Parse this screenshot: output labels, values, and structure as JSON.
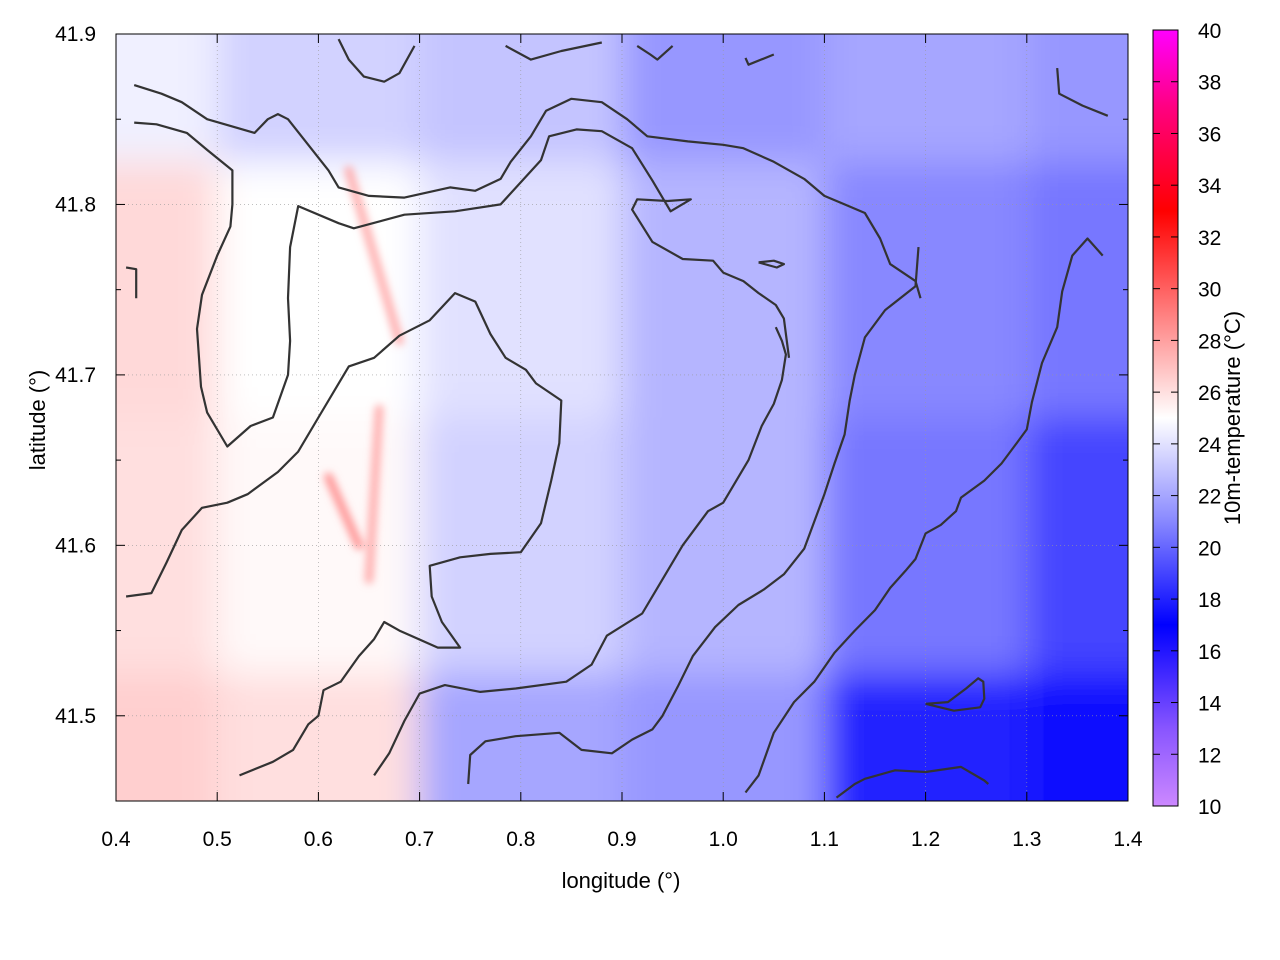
{
  "chart_data": {
    "type": "heatmap",
    "title": "",
    "xlabel": "longitude (°)",
    "ylabel": "latitude (°)",
    "colorbar_label": "10m-temperature (°C)",
    "xlim": [
      0.4,
      1.4
    ],
    "ylim": [
      41.45,
      41.9
    ],
    "x_ticks": [
      "0.4",
      "0.5",
      "0.6",
      "0.7",
      "0.8",
      "0.9",
      "1.0",
      "1.1",
      "1.2",
      "1.3",
      "1.4"
    ],
    "y_ticks": [
      "41.5",
      "41.6",
      "41.7",
      "41.8",
      "41.9"
    ],
    "colorbar_range": [
      10,
      40
    ],
    "colorbar_ticks": [
      "10",
      "12",
      "14",
      "16",
      "18",
      "20",
      "22",
      "24",
      "26",
      "28",
      "30",
      "32",
      "34",
      "36",
      "38",
      "40"
    ],
    "colorbar_colors": [
      {
        "value": 10,
        "color": "#cc88ff"
      },
      {
        "value": 13,
        "color": "#8855ff"
      },
      {
        "value": 17,
        "color": "#0000ff"
      },
      {
        "value": 21,
        "color": "#8888ff"
      },
      {
        "value": 25,
        "color": "#ffffff"
      },
      {
        "value": 29,
        "color": "#ff8080"
      },
      {
        "value": 33,
        "color": "#ff0000"
      },
      {
        "value": 37,
        "color": "#ff0080"
      },
      {
        "value": 40,
        "color": "#ff00ff"
      }
    ],
    "grid": true,
    "contour_color": "#333333",
    "temperature_field_samples": [
      {
        "lon": 0.4,
        "lat": 41.45,
        "t": 26.5
      },
      {
        "lon": 0.4,
        "lat": 41.6,
        "t": 26.0
      },
      {
        "lon": 0.4,
        "lat": 41.75,
        "t": 26.2
      },
      {
        "lon": 0.4,
        "lat": 41.9,
        "t": 24.5
      },
      {
        "lon": 0.6,
        "lat": 41.45,
        "t": 26.0
      },
      {
        "lon": 0.6,
        "lat": 41.6,
        "t": 25.2
      },
      {
        "lon": 0.6,
        "lat": 41.75,
        "t": 25.0
      },
      {
        "lon": 0.6,
        "lat": 41.9,
        "t": 23.5
      },
      {
        "lon": 0.8,
        "lat": 41.45,
        "t": 22.0
      },
      {
        "lon": 0.8,
        "lat": 41.6,
        "t": 23.5
      },
      {
        "lon": 0.8,
        "lat": 41.75,
        "t": 24.0
      },
      {
        "lon": 0.8,
        "lat": 41.9,
        "t": 23.0
      },
      {
        "lon": 1.0,
        "lat": 41.45,
        "t": 21.5
      },
      {
        "lon": 1.0,
        "lat": 41.6,
        "t": 22.5
      },
      {
        "lon": 1.0,
        "lat": 41.75,
        "t": 22.5
      },
      {
        "lon": 1.0,
        "lat": 41.9,
        "t": 21.5
      },
      {
        "lon": 1.2,
        "lat": 41.45,
        "t": 18.0
      },
      {
        "lon": 1.2,
        "lat": 41.6,
        "t": 20.5
      },
      {
        "lon": 1.2,
        "lat": 41.75,
        "t": 21.0
      },
      {
        "lon": 1.2,
        "lat": 41.9,
        "t": 22.0
      },
      {
        "lon": 1.4,
        "lat": 41.45,
        "t": 17.5
      },
      {
        "lon": 1.4,
        "lat": 41.6,
        "t": 19.0
      },
      {
        "lon": 1.4,
        "lat": 41.75,
        "t": 20.5
      },
      {
        "lon": 1.4,
        "lat": 41.9,
        "t": 21.5
      }
    ],
    "contours": [
      [
        [
          0.418,
          41.87
        ],
        [
          0.445,
          41.865
        ],
        [
          0.465,
          41.86
        ],
        [
          0.49,
          41.85
        ],
        [
          0.537,
          41.842
        ],
        [
          0.55,
          41.85
        ],
        [
          0.56,
          41.853
        ],
        [
          0.57,
          41.85
        ],
        [
          0.61,
          41.82
        ],
        [
          0.62,
          41.81
        ],
        [
          0.65,
          41.805
        ],
        [
          0.685,
          41.804
        ],
        [
          0.73,
          41.81
        ],
        [
          0.755,
          41.808
        ],
        [
          0.78,
          41.815
        ],
        [
          0.79,
          41.825
        ],
        [
          0.81,
          41.84
        ],
        [
          0.825,
          41.855
        ],
        [
          0.85,
          41.862
        ],
        [
          0.88,
          41.86
        ],
        [
          0.905,
          41.85
        ],
        [
          0.925,
          41.84
        ],
        [
          0.965,
          41.837
        ],
        [
          1.0,
          41.835
        ],
        [
          1.02,
          41.833
        ],
        [
          1.05,
          41.825
        ],
        [
          1.08,
          41.815
        ],
        [
          1.1,
          41.805
        ],
        [
          1.12,
          41.8
        ],
        [
          1.14,
          41.795
        ],
        [
          1.155,
          41.78
        ],
        [
          1.165,
          41.765
        ],
        [
          1.19,
          41.755
        ],
        [
          1.195,
          41.745
        ]
      ],
      [
        [
          0.418,
          41.848
        ],
        [
          0.44,
          41.847
        ],
        [
          0.47,
          41.842
        ],
        [
          0.49,
          41.832
        ],
        [
          0.515,
          41.82
        ],
        [
          0.515,
          41.8
        ],
        [
          0.513,
          41.787
        ],
        [
          0.5,
          41.77
        ],
        [
          0.485,
          41.747
        ],
        [
          0.48,
          41.727
        ],
        [
          0.482,
          41.71
        ],
        [
          0.484,
          41.693
        ],
        [
          0.49,
          41.678
        ],
        [
          0.51,
          41.658
        ],
        [
          0.533,
          41.67
        ],
        [
          0.555,
          41.675
        ],
        [
          0.57,
          41.7
        ],
        [
          0.572,
          41.72
        ],
        [
          0.57,
          41.745
        ],
        [
          0.572,
          41.775
        ],
        [
          0.58,
          41.799
        ],
        [
          0.62,
          41.789
        ],
        [
          0.635,
          41.786
        ],
        [
          0.685,
          41.794
        ],
        [
          0.735,
          41.796
        ],
        [
          0.78,
          41.8
        ],
        [
          0.82,
          41.826
        ],
        [
          0.828,
          41.84
        ],
        [
          0.855,
          41.844
        ],
        [
          0.88,
          41.843
        ],
        [
          0.91,
          41.833
        ],
        [
          0.93,
          41.814
        ],
        [
          0.948,
          41.796
        ],
        [
          0.968,
          41.803
        ],
        [
          0.945,
          41.802
        ],
        [
          0.915,
          41.803
        ],
        [
          0.91,
          41.797
        ],
        [
          0.93,
          41.778
        ],
        [
          0.96,
          41.768
        ],
        [
          0.99,
          41.767
        ],
        [
          1.0,
          41.76
        ],
        [
          1.02,
          41.755
        ],
        [
          1.035,
          41.748
        ],
        [
          1.052,
          41.741
        ],
        [
          1.06,
          41.733
        ],
        [
          1.065,
          41.71
        ]
      ],
      [
        [
          0.41,
          41.57
        ],
        [
          0.435,
          41.572
        ],
        [
          0.45,
          41.59
        ],
        [
          0.465,
          41.609
        ],
        [
          0.485,
          41.622
        ],
        [
          0.51,
          41.625
        ],
        [
          0.53,
          41.63
        ],
        [
          0.56,
          41.643
        ],
        [
          0.58,
          41.655
        ],
        [
          0.6,
          41.675
        ],
        [
          0.63,
          41.705
        ],
        [
          0.655,
          41.71
        ],
        [
          0.68,
          41.723
        ],
        [
          0.71,
          41.732
        ],
        [
          0.735,
          41.748
        ],
        [
          0.755,
          41.743
        ],
        [
          0.77,
          41.724
        ],
        [
          0.785,
          41.71
        ],
        [
          0.805,
          41.703
        ],
        [
          0.815,
          41.695
        ],
        [
          0.84,
          41.685
        ],
        [
          0.838,
          41.66
        ],
        [
          0.83,
          41.638
        ],
        [
          0.82,
          41.613
        ],
        [
          0.8,
          41.596
        ],
        [
          0.77,
          41.595
        ],
        [
          0.74,
          41.593
        ],
        [
          0.71,
          41.588
        ],
        [
          0.712,
          41.57
        ],
        [
          0.722,
          41.555
        ],
        [
          0.74,
          41.54
        ],
        [
          0.718,
          41.54
        ],
        [
          0.68,
          41.55
        ],
        [
          0.665,
          41.555
        ],
        [
          0.655,
          41.545
        ],
        [
          0.64,
          41.535
        ],
        [
          0.622,
          41.52
        ],
        [
          0.605,
          41.515
        ],
        [
          0.6,
          41.5
        ],
        [
          0.59,
          41.495
        ],
        [
          0.575,
          41.48
        ],
        [
          0.555,
          41.473
        ],
        [
          0.522,
          41.465
        ]
      ],
      [
        [
          0.655,
          41.465
        ],
        [
          0.67,
          41.478
        ],
        [
          0.685,
          41.497
        ],
        [
          0.7,
          41.513
        ],
        [
          0.725,
          41.518
        ],
        [
          0.76,
          41.514
        ],
        [
          0.795,
          41.516
        ],
        [
          0.845,
          41.52
        ],
        [
          0.87,
          41.53
        ],
        [
          0.885,
          41.547
        ],
        [
          0.92,
          41.56
        ],
        [
          0.935,
          41.575
        ],
        [
          0.96,
          41.6
        ],
        [
          0.985,
          41.62
        ],
        [
          1.0,
          41.625
        ],
        [
          1.01,
          41.635
        ],
        [
          1.025,
          41.65
        ],
        [
          1.038,
          41.67
        ],
        [
          1.05,
          41.683
        ],
        [
          1.058,
          41.697
        ],
        [
          1.062,
          41.712
        ],
        [
          1.058,
          41.72
        ],
        [
          1.052,
          41.728
        ]
      ],
      [
        [
          0.748,
          41.46
        ],
        [
          0.75,
          41.477
        ],
        [
          0.765,
          41.485
        ],
        [
          0.795,
          41.488
        ],
        [
          0.838,
          41.49
        ],
        [
          0.86,
          41.48
        ],
        [
          0.89,
          41.478
        ],
        [
          0.91,
          41.486
        ],
        [
          0.93,
          41.492
        ],
        [
          0.94,
          41.5
        ],
        [
          0.955,
          41.517
        ],
        [
          0.97,
          41.535
        ],
        [
          0.992,
          41.552
        ],
        [
          1.015,
          41.565
        ],
        [
          1.04,
          41.574
        ],
        [
          1.06,
          41.583
        ],
        [
          1.08,
          41.598
        ],
        [
          1.09,
          41.614
        ],
        [
          1.1,
          41.63
        ],
        [
          1.11,
          41.648
        ],
        [
          1.12,
          41.665
        ],
        [
          1.125,
          41.685
        ],
        [
          1.13,
          41.7
        ],
        [
          1.14,
          41.722
        ],
        [
          1.16,
          41.738
        ],
        [
          1.19,
          41.752
        ],
        [
          1.193,
          41.775
        ]
      ],
      [
        [
          1.022,
          41.455
        ],
        [
          1.035,
          41.465
        ],
        [
          1.05,
          41.49
        ],
        [
          1.07,
          41.508
        ],
        [
          1.09,
          41.52
        ],
        [
          1.11,
          41.537
        ],
        [
          1.13,
          41.55
        ],
        [
          1.15,
          41.562
        ],
        [
          1.165,
          41.575
        ],
        [
          1.18,
          41.585
        ],
        [
          1.19,
          41.592
        ],
        [
          1.2,
          41.607
        ],
        [
          1.215,
          41.612
        ],
        [
          1.23,
          41.62
        ],
        [
          1.235,
          41.628
        ],
        [
          1.258,
          41.638
        ],
        [
          1.275,
          41.648
        ],
        [
          1.29,
          41.66
        ],
        [
          1.3,
          41.668
        ],
        [
          1.305,
          41.684
        ],
        [
          1.315,
          41.707
        ],
        [
          1.33,
          41.728
        ],
        [
          1.335,
          41.749
        ],
        [
          1.345,
          41.77
        ],
        [
          1.36,
          41.78
        ],
        [
          1.375,
          41.77
        ]
      ],
      [
        [
          1.112,
          41.452
        ],
        [
          1.13,
          41.46
        ],
        [
          1.14,
          41.463
        ],
        [
          1.17,
          41.468
        ],
        [
          1.2,
          41.467
        ],
        [
          1.235,
          41.47
        ],
        [
          1.258,
          41.462
        ],
        [
          1.262,
          41.46
        ]
      ],
      [
        [
          1.2,
          41.507
        ],
        [
          1.222,
          41.508
        ],
        [
          1.24,
          41.516
        ],
        [
          1.252,
          41.522
        ],
        [
          1.257,
          41.52
        ],
        [
          1.258,
          41.51
        ],
        [
          1.254,
          41.505
        ],
        [
          1.228,
          41.503
        ],
        [
          1.2,
          41.507
        ]
      ],
      [
        [
          1.035,
          41.766
        ],
        [
          1.05,
          41.767
        ],
        [
          1.06,
          41.765
        ],
        [
          1.053,
          41.763
        ],
        [
          1.035,
          41.766
        ]
      ],
      [
        [
          0.42,
          41.745
        ],
        [
          0.42,
          41.762
        ],
        [
          0.41,
          41.763
        ]
      ],
      [
        [
          0.62,
          41.897
        ],
        [
          0.63,
          41.885
        ],
        [
          0.645,
          41.875
        ],
        [
          0.665,
          41.872
        ],
        [
          0.68,
          41.877
        ],
        [
          0.695,
          41.893
        ]
      ],
      [
        [
          0.785,
          41.893
        ],
        [
          0.81,
          41.885
        ],
        [
          0.84,
          41.89
        ],
        [
          0.88,
          41.895
        ]
      ],
      [
        [
          0.915,
          41.893
        ],
        [
          0.928,
          41.888
        ],
        [
          0.935,
          41.885
        ],
        [
          0.95,
          41.893
        ]
      ],
      [
        [
          1.022,
          41.886
        ],
        [
          1.025,
          41.882
        ],
        [
          1.05,
          41.888
        ]
      ],
      [
        [
          1.33,
          41.88
        ],
        [
          1.332,
          41.865
        ],
        [
          1.355,
          41.858
        ],
        [
          1.38,
          41.852
        ]
      ]
    ],
    "hotspot_streaks": [
      {
        "lon_start": 0.63,
        "lat_start": 41.82,
        "lon_end": 0.68,
        "lat_end": 41.72,
        "t": 28
      },
      {
        "lon_start": 0.66,
        "lat_start": 41.68,
        "lon_end": 0.65,
        "lat_end": 41.58,
        "t": 28
      },
      {
        "lon_start": 0.61,
        "lat_start": 41.64,
        "lon_end": 0.64,
        "lat_end": 41.6,
        "t": 29
      }
    ]
  }
}
